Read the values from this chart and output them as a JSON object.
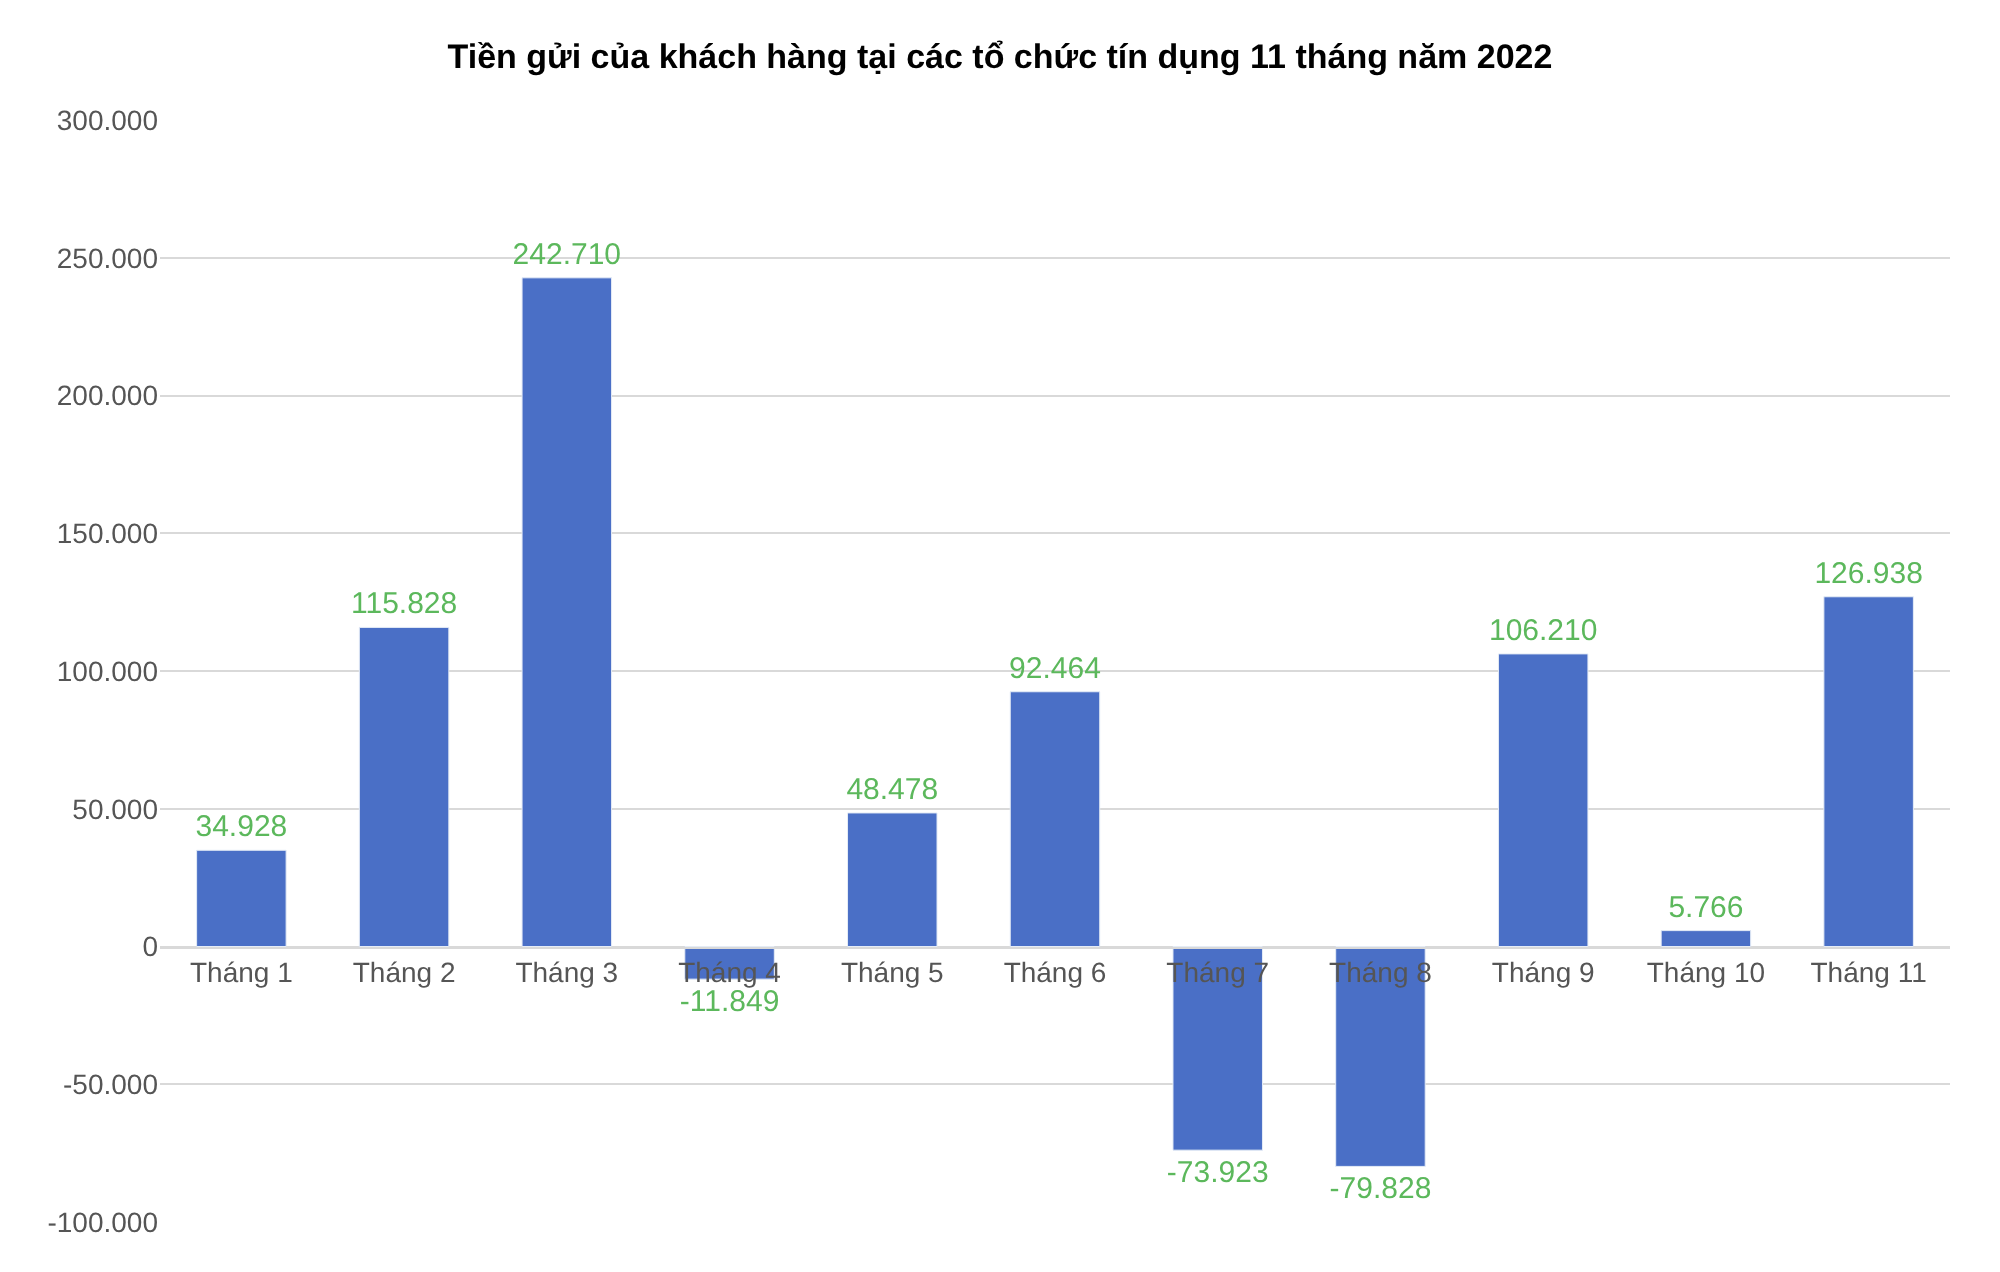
{
  "chart_data": {
    "type": "bar",
    "title": "Tiền gửi của khách hàng tại các tổ chức tín dụng 11 tháng năm 2022",
    "categories": [
      "Tháng 1",
      "Tháng 2",
      "Tháng 3",
      "Tháng 4",
      "Tháng 5",
      "Tháng 6",
      "Tháng 7",
      "Tháng 8",
      "Tháng 9",
      "Tháng 10",
      "Tháng 11"
    ],
    "values": [
      34928,
      115828,
      242710,
      -11849,
      48478,
      92464,
      -73923,
      -79828,
      106210,
      5766,
      126938
    ],
    "value_labels": [
      "34.928",
      "115.828",
      "242.710",
      "-11.849",
      "48.478",
      "92.464",
      "-73.923",
      "-79.828",
      "106.210",
      "5.766",
      "126.938"
    ],
    "color": "#4a6fc6",
    "ylim": [
      -100000,
      300000
    ],
    "yticks": [
      {
        "value": -100000,
        "label": "-100.000"
      },
      {
        "value": -50000,
        "label": "-50.000"
      },
      {
        "value": 0,
        "label": "0"
      },
      {
        "value": 50000,
        "label": "50.000"
      },
      {
        "value": 100000,
        "label": "100.000"
      },
      {
        "value": 150000,
        "label": "150.000"
      },
      {
        "value": 200000,
        "label": "200.000"
      },
      {
        "value": 250000,
        "label": "250.000"
      },
      {
        "value": 300000,
        "label": "300.000"
      }
    ],
    "grid": "y",
    "legend": false
  }
}
